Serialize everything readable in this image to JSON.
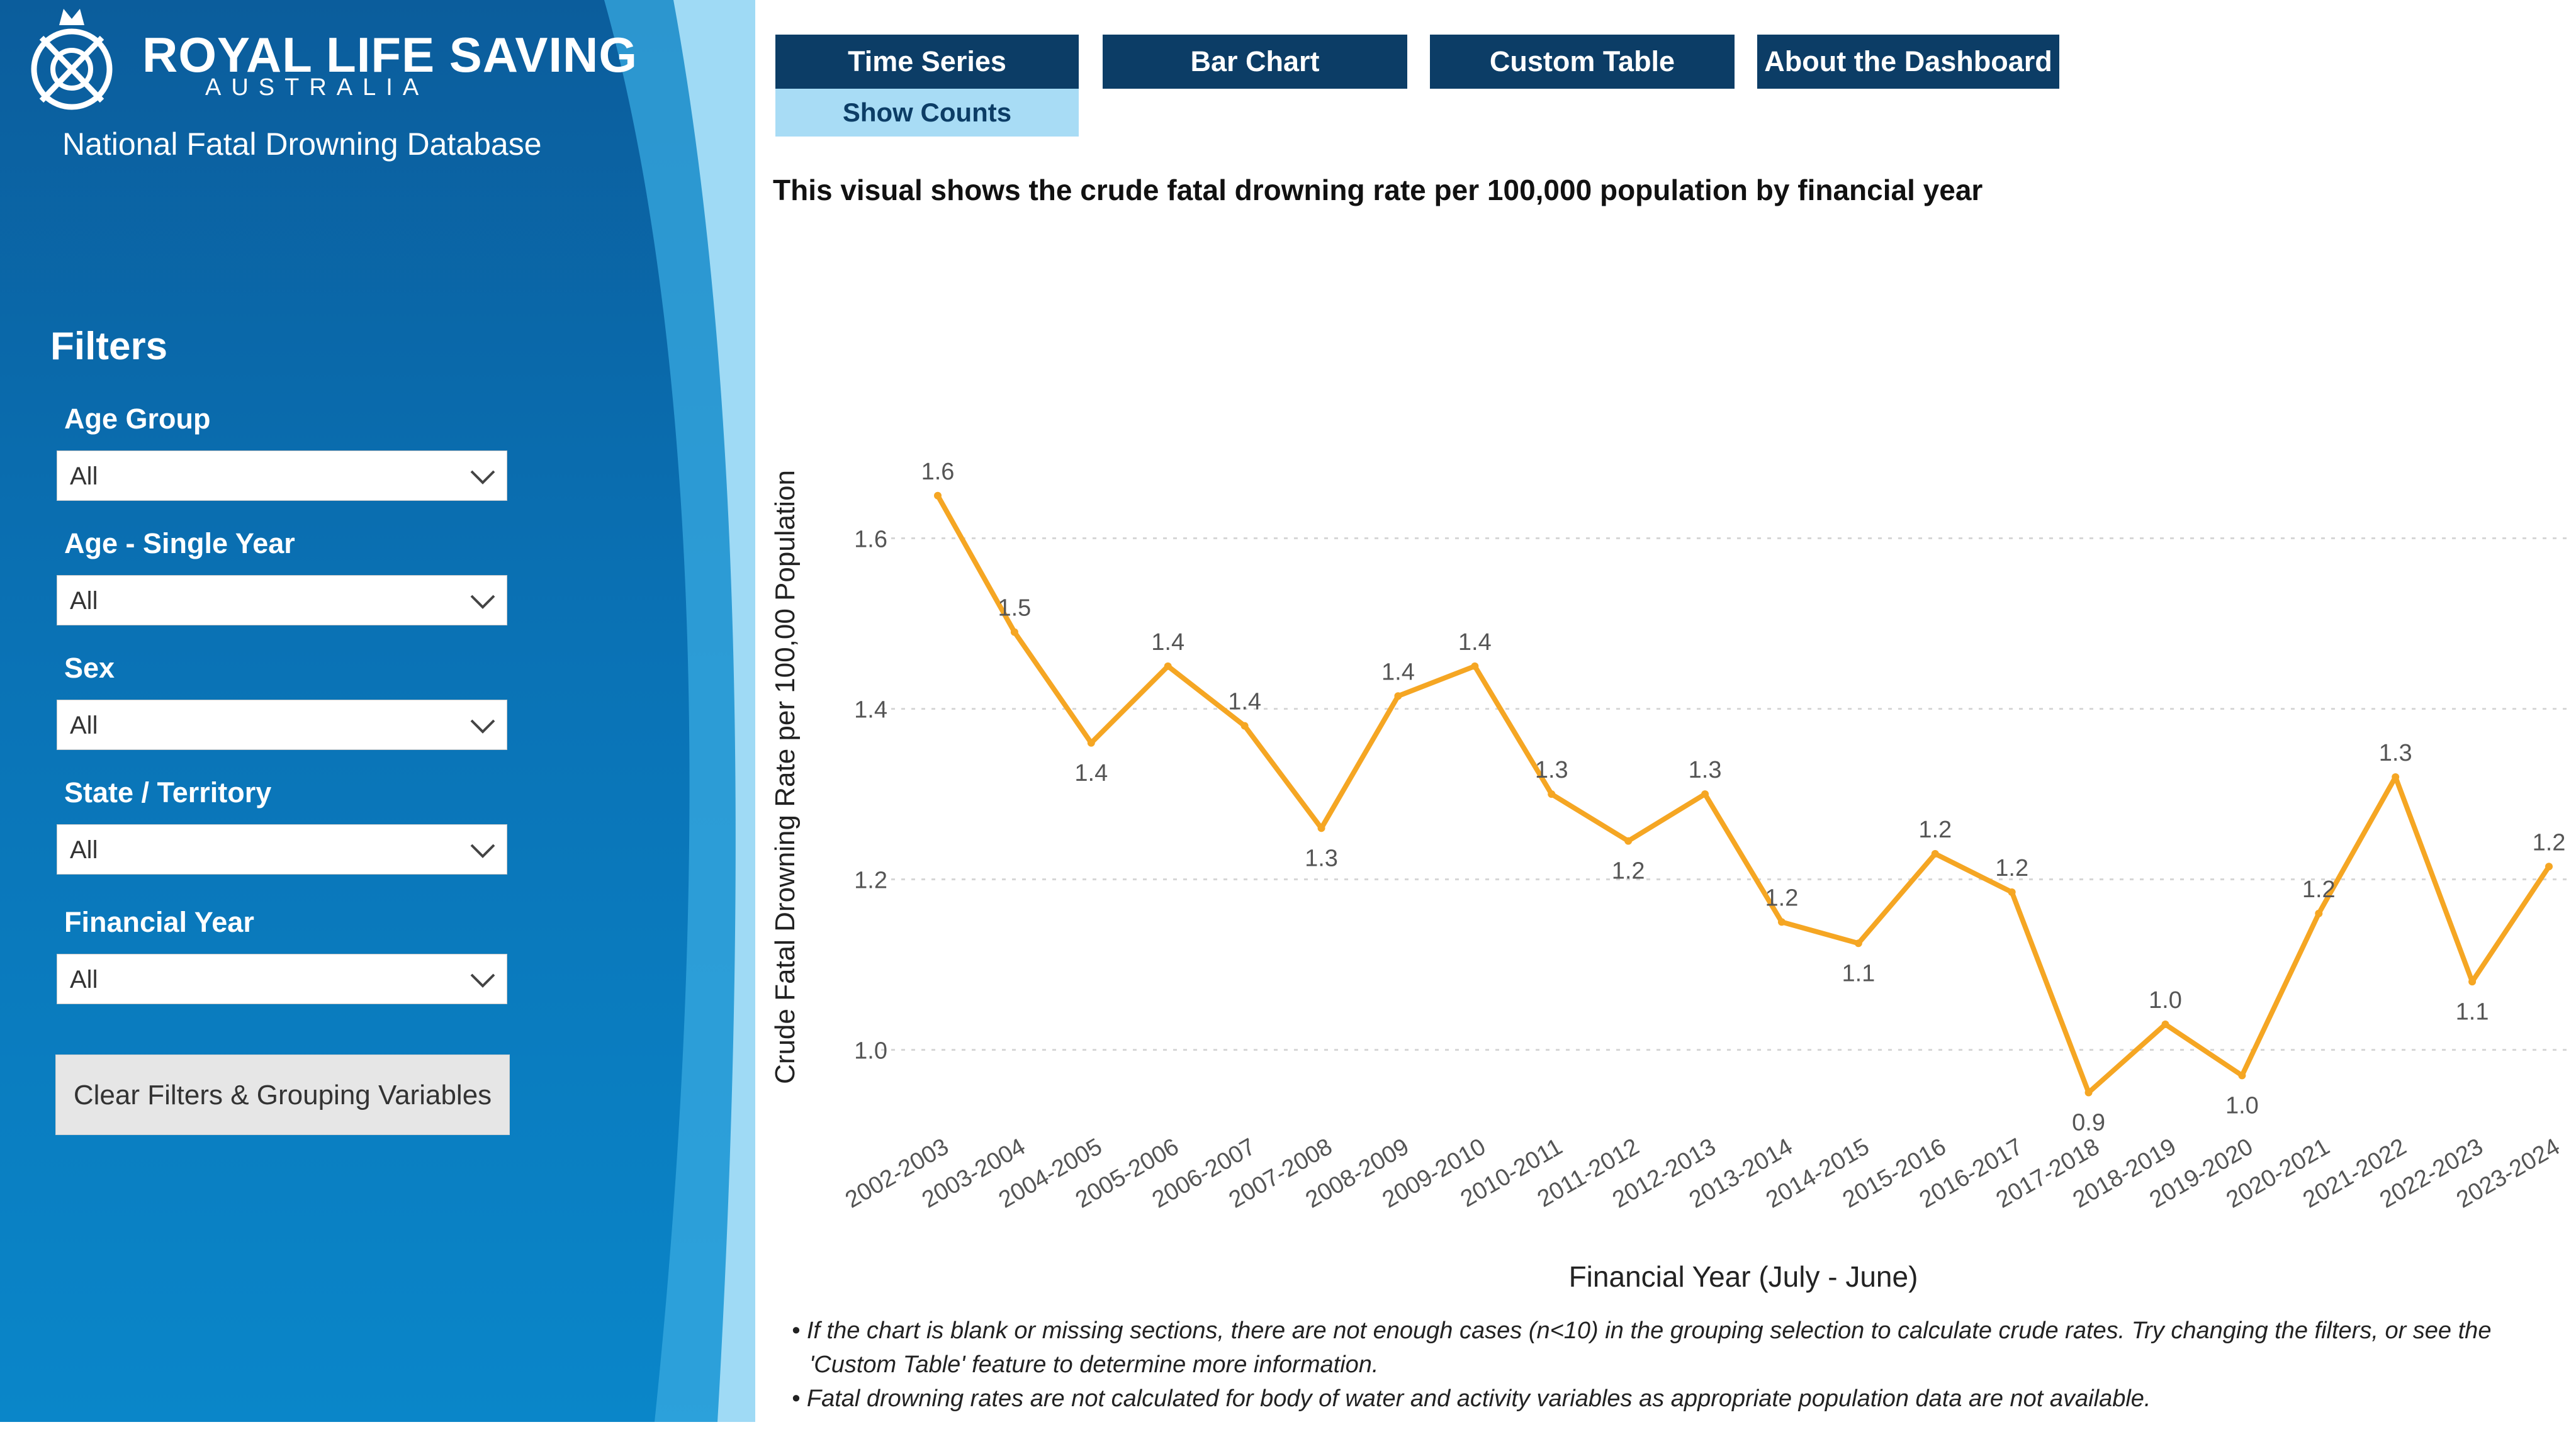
{
  "brand": {
    "title": "ROYAL LIFE SAVING",
    "subtitle": "AUSTRALIA",
    "database": "National Fatal Drowning Database"
  },
  "filters": {
    "title": "Filters",
    "items": [
      {
        "label": "Age Group",
        "value": "All"
      },
      {
        "label": "Age - Single Year",
        "value": "All"
      },
      {
        "label": "Sex",
        "value": "All"
      },
      {
        "label": "State / Territory",
        "value": "All"
      },
      {
        "label": "Financial Year",
        "value": "All"
      }
    ],
    "clear_label": "Clear Filters & Grouping Variables"
  },
  "tabs": [
    {
      "label": "Time Series"
    },
    {
      "label": "Bar Chart"
    },
    {
      "label": "Custom Table"
    },
    {
      "label": "About the Dashboard"
    }
  ],
  "subtab": {
    "label": "Show Counts"
  },
  "description": "This visual shows the crude fatal drowning rate per 100,000 population by financial year",
  "chart_data": {
    "type": "line",
    "x": [
      "2002-2003",
      "2003-2004",
      "2004-2005",
      "2005-2006",
      "2006-2007",
      "2007-2008",
      "2008-2009",
      "2009-2010",
      "2010-2011",
      "2011-2012",
      "2012-2013",
      "2013-2014",
      "2014-2015",
      "2015-2016",
      "2016-2017",
      "2017-2018",
      "2018-2019",
      "2019-2020",
      "2020-2021",
      "2021-2022",
      "2022-2023",
      "2023-2024"
    ],
    "values": [
      1.65,
      1.49,
      1.36,
      1.45,
      1.38,
      1.26,
      1.415,
      1.45,
      1.3,
      1.245,
      1.3,
      1.15,
      1.125,
      1.23,
      1.185,
      0.95,
      1.03,
      0.97,
      1.16,
      1.32,
      1.08,
      1.215
    ],
    "labels": [
      "1.6",
      "1.5",
      "1.4",
      "1.4",
      "1.4",
      "1.3",
      "1.4",
      "1.4",
      "1.3",
      "1.2",
      "1.3",
      "1.2",
      "1.1",
      "1.2",
      "1.2",
      "0.9",
      "1.0",
      "1.0",
      "1.2",
      "1.3",
      "1.1",
      "1.2"
    ],
    "yticks": [
      "1.0",
      "1.2",
      "1.4",
      "1.6"
    ],
    "ylim": [
      0.94,
      1.7
    ],
    "xlabel": "Financial Year (July - June)",
    "ylabel": "Crude Fatal Drowning Rate per 100,00 Population",
    "color": "#f5a623",
    "grid": true
  },
  "notes": [
    "• If the chart is blank or missing sections, there are not enough cases (n<10) in the grouping selection to calculate crude rates. Try changing the filters, or see the",
    "'Custom Table' feature to determine more information.",
    "• Fatal drowning rates are not calculated for body of water and activity variables as appropriate population data are not available."
  ]
}
